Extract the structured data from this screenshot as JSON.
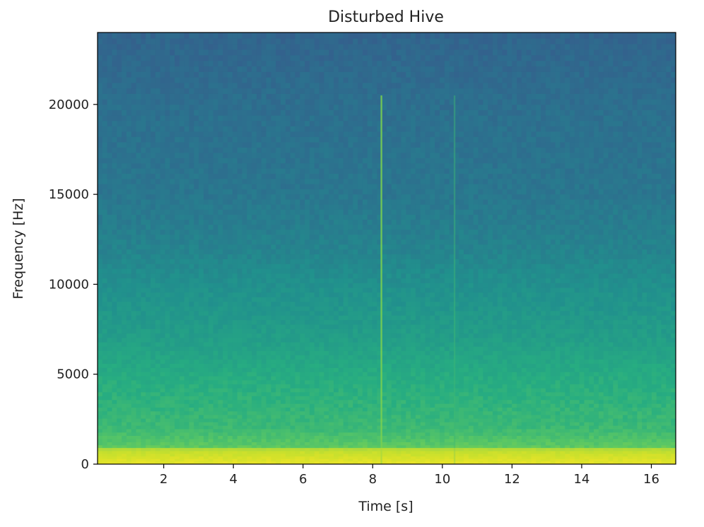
{
  "chart_data": {
    "type": "heatmap",
    "title": "Disturbed Hive",
    "xlabel": "Time [s]",
    "ylabel": "Frequency [Hz]",
    "xlim": [
      0.1,
      16.7
    ],
    "ylim": [
      0,
      24000
    ],
    "xticks": [
      2,
      4,
      6,
      8,
      10,
      12,
      14,
      16
    ],
    "yticks": [
      0,
      5000,
      10000,
      15000,
      20000
    ],
    "colormap": "viridis",
    "grid": false,
    "notable_features": [
      {
        "type": "vertical_line",
        "time": 8.25,
        "description": "broadband transient"
      },
      {
        "type": "vertical_line",
        "time": 10.35,
        "description": "faint broadband transient"
      },
      {
        "type": "horizontal_band",
        "freq_range": [
          0,
          900
        ],
        "description": "strong low-frequency energy"
      }
    ],
    "intensity_profile": {
      "freq_points": [
        0,
        300,
        700,
        1000,
        2000,
        3000,
        5000,
        7000,
        10000,
        12000,
        15000,
        20000,
        24000
      ],
      "level": [
        0.99,
        0.95,
        0.88,
        0.75,
        0.68,
        0.66,
        0.62,
        0.56,
        0.5,
        0.45,
        0.4,
        0.37,
        0.33
      ]
    }
  },
  "colors": {
    "axis": "#000000",
    "text": "#222222"
  }
}
